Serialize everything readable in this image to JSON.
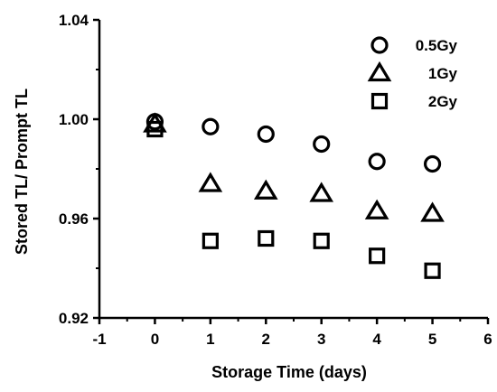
{
  "chart_data": {
    "type": "scatter",
    "xlabel": "Storage Time (days)",
    "ylabel": "Stored TL/ Prompt TL",
    "xlim": [
      -1,
      6
    ],
    "ylim": [
      0.92,
      1.04
    ],
    "x_ticks": [
      "-1",
      "0",
      "1",
      "2",
      "3",
      "4",
      "5",
      "6"
    ],
    "y_ticks": [
      "0.92",
      "0.96",
      "1.00",
      "1.04"
    ],
    "legend_position": "top-right",
    "grid": false,
    "series": [
      {
        "name": "0.5Gy",
        "marker": "circle",
        "x": [
          0,
          1,
          2,
          3,
          4,
          5
        ],
        "y": [
          0.999,
          0.997,
          0.994,
          0.99,
          0.983,
          0.982
        ]
      },
      {
        "name": "1Gy",
        "marker": "triangle",
        "x": [
          0,
          1,
          2,
          3,
          4,
          5
        ],
        "y": [
          0.998,
          0.974,
          0.971,
          0.97,
          0.963,
          0.962
        ]
      },
      {
        "name": "2Gy",
        "marker": "square",
        "x": [
          0,
          1,
          2,
          3,
          4,
          5
        ],
        "y": [
          0.996,
          0.951,
          0.952,
          0.951,
          0.945,
          0.939
        ]
      }
    ]
  }
}
